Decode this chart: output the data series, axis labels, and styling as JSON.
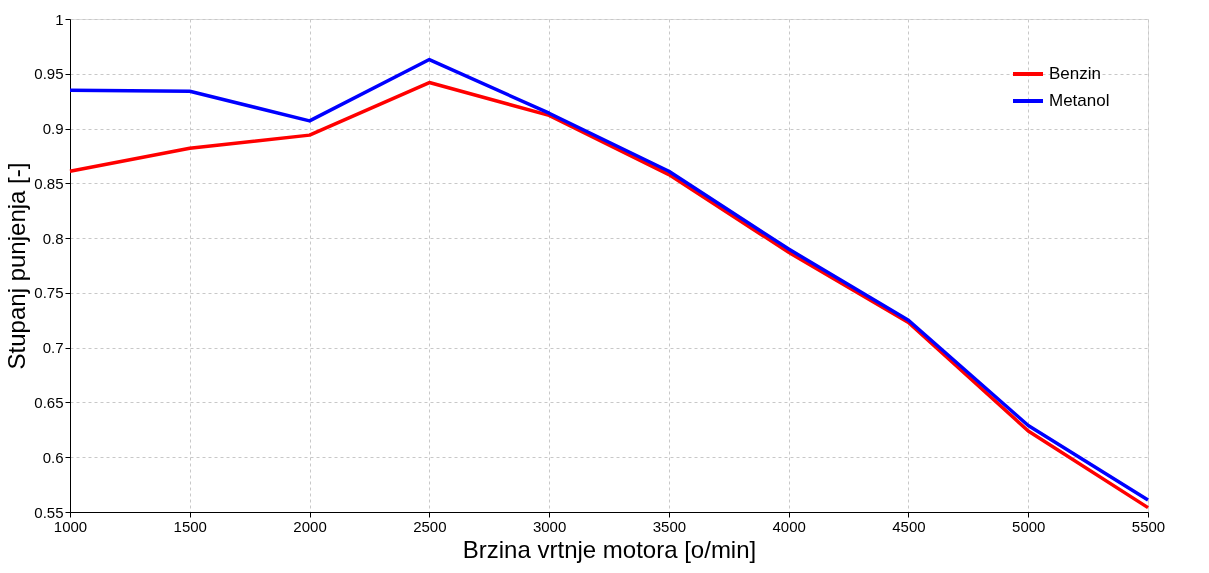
{
  "chart_data": {
    "type": "line",
    "xlabel": "Brzina vrtnje motora [o/min]",
    "ylabel": "Stupanj punjenja [-]",
    "x": [
      1000,
      1500,
      2000,
      2500,
      3000,
      3500,
      4000,
      4500,
      5000,
      5500
    ],
    "series": [
      {
        "name": "Benzin",
        "color": "#ff0000",
        "values": [
          0.861,
          0.882,
          0.894,
          0.942,
          0.912,
          0.858,
          0.787,
          0.723,
          0.624,
          0.554
        ]
      },
      {
        "name": "Metanol",
        "color": "#0000ff",
        "values": [
          0.935,
          0.934,
          0.907,
          0.963,
          0.914,
          0.861,
          0.79,
          0.725,
          0.629,
          0.561
        ]
      }
    ],
    "xlim": [
      1000,
      5500
    ],
    "xticks": [
      1000,
      1500,
      2000,
      2500,
      3000,
      3500,
      4000,
      4500,
      5000,
      5500
    ],
    "ylim": [
      0.55,
      1
    ],
    "yticks": [
      0.55,
      0.6,
      0.65,
      0.7,
      0.75,
      0.8,
      0.85,
      0.9,
      0.95,
      1
    ],
    "grid": true,
    "legend": "top right",
    "marker": "none",
    "line_style": "solid"
  }
}
